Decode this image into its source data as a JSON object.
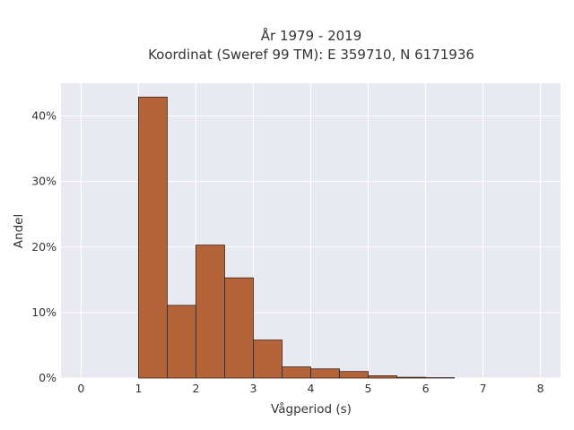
{
  "chart_data": {
    "type": "bar",
    "title_lines": [
      "År 1979 - 2019",
      "Koordinat (Sweref 99 TM): E 359710, N 6171936"
    ],
    "xlabel": "Vågperiod (s)",
    "ylabel": "Andel",
    "xlim": [
      -0.35,
      8.35
    ],
    "ylim": [
      0,
      45
    ],
    "x_ticks": [
      0,
      1,
      2,
      3,
      4,
      5,
      6,
      7,
      8
    ],
    "x_tick_labels": [
      "0",
      "1",
      "2",
      "3",
      "4",
      "5",
      "6",
      "7",
      "8"
    ],
    "y_ticks": [
      0,
      10,
      20,
      30,
      40
    ],
    "y_tick_labels": [
      "0%",
      "10%",
      "20%",
      "30%",
      "40%"
    ],
    "bin_width": 0.5,
    "bins": [
      {
        "x0": 1.0,
        "value": 42.9
      },
      {
        "x0": 1.5,
        "value": 11.1
      },
      {
        "x0": 2.0,
        "value": 20.3
      },
      {
        "x0": 2.5,
        "value": 15.3
      },
      {
        "x0": 3.0,
        "value": 5.8
      },
      {
        "x0": 3.5,
        "value": 1.7
      },
      {
        "x0": 4.0,
        "value": 1.4
      },
      {
        "x0": 4.5,
        "value": 1.0
      },
      {
        "x0": 5.0,
        "value": 0.35
      },
      {
        "x0": 5.5,
        "value": 0.12
      },
      {
        "x0": 6.0,
        "value": 0.06
      }
    ],
    "grid": true,
    "colors": {
      "bar_fill": "#b5643a",
      "bar_stroke": "#3a2418",
      "plot_bg": "#e9e9f2",
      "grid": "#ffffff"
    }
  }
}
